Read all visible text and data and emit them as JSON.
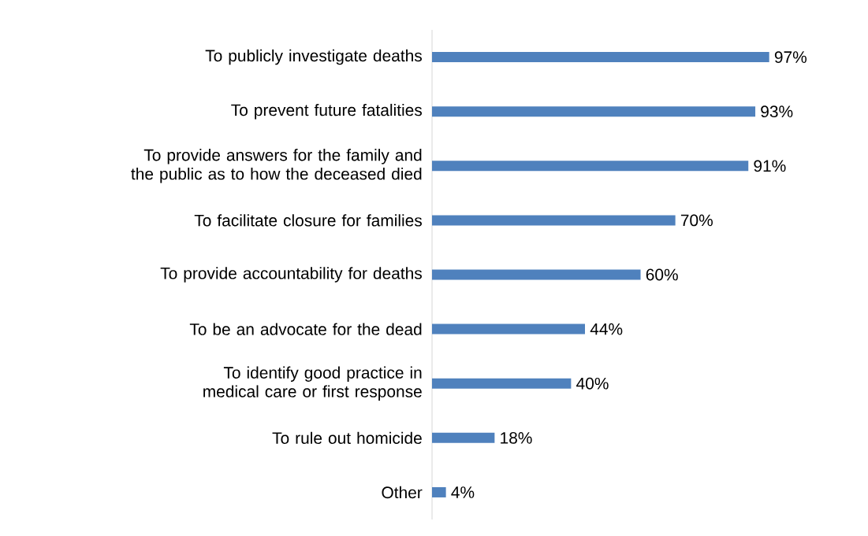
{
  "chart_data": {
    "type": "bar",
    "orientation": "horizontal",
    "categories": [
      "To publicly investigate deaths",
      "To prevent future fatalities",
      "To provide answers for the family and the public as to how the deceased died",
      "To facilitate closure for families",
      "To provide accountability for deaths",
      "To be an advocate for the dead",
      "To identify good practice in medical care or first response",
      "To rule out homicide",
      "Other"
    ],
    "values": [
      97,
      93,
      91,
      70,
      60,
      44,
      40,
      18,
      4
    ],
    "value_labels": [
      "97%",
      "93%",
      "91%",
      "70%",
      "60%",
      "44%",
      "40%",
      "18%",
      "4%"
    ],
    "color": "#4f81bd"
  }
}
